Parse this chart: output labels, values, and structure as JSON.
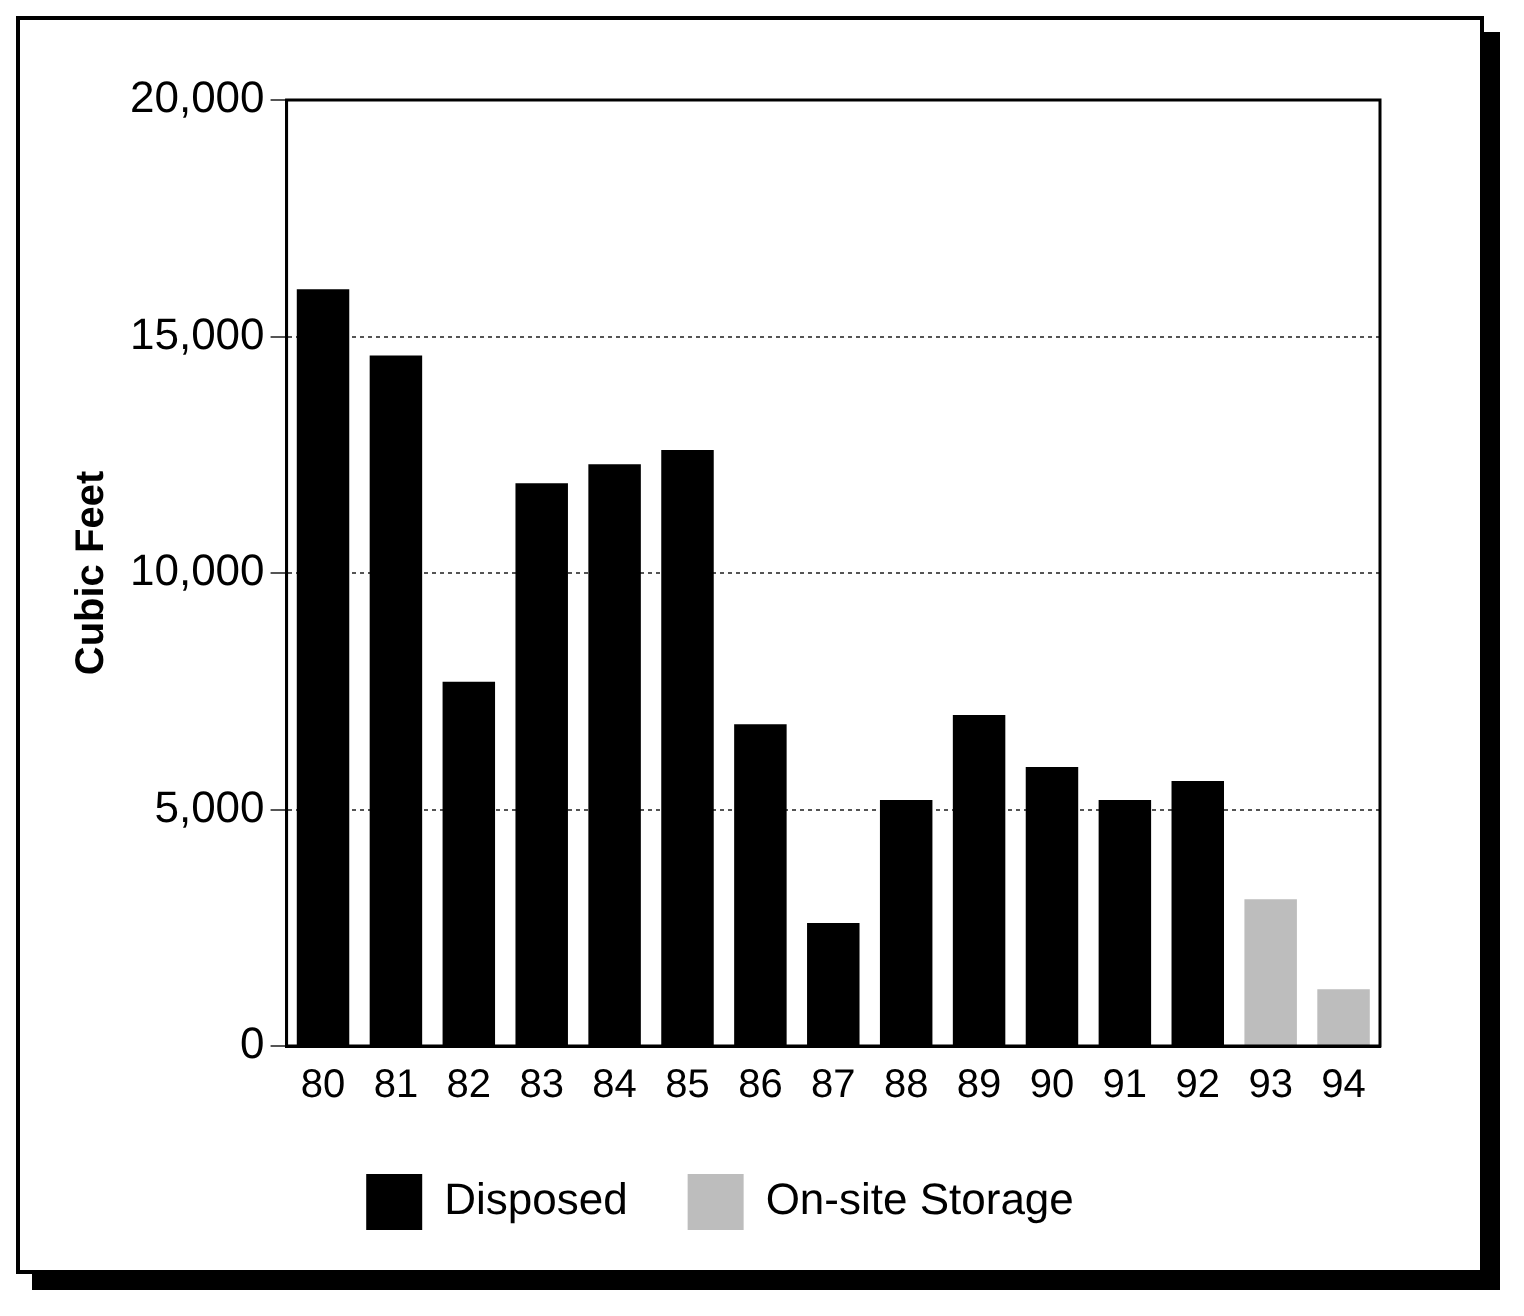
{
  "chart_data": {
    "type": "bar",
    "ylabel": "Cubic Feet",
    "categories": [
      "80",
      "81",
      "82",
      "83",
      "84",
      "85",
      "86",
      "87",
      "88",
      "89",
      "90",
      "91",
      "92",
      "93",
      "94"
    ],
    "series": [
      {
        "name": "Disposed",
        "color": "#000000",
        "values": [
          16000,
          14600,
          7700,
          11900,
          12300,
          12600,
          6800,
          2600,
          5200,
          7000,
          5900,
          5200,
          5600,
          null,
          null
        ]
      },
      {
        "name": "On-site Storage",
        "color": "#bdbdbd",
        "values": [
          null,
          null,
          null,
          null,
          null,
          null,
          null,
          null,
          null,
          null,
          null,
          null,
          null,
          3100,
          1200
        ]
      }
    ],
    "stacked": true,
    "ylim": [
      0,
      20000
    ],
    "yticks": [
      {
        "value": 0,
        "label": "0"
      },
      {
        "value": 5000,
        "label": "5,000"
      },
      {
        "value": 10000,
        "label": "10,000"
      },
      {
        "value": 15000,
        "label": "15,000"
      },
      {
        "value": 20000,
        "label": "20,000"
      }
    ],
    "grid": "y",
    "legend": "bottom"
  }
}
